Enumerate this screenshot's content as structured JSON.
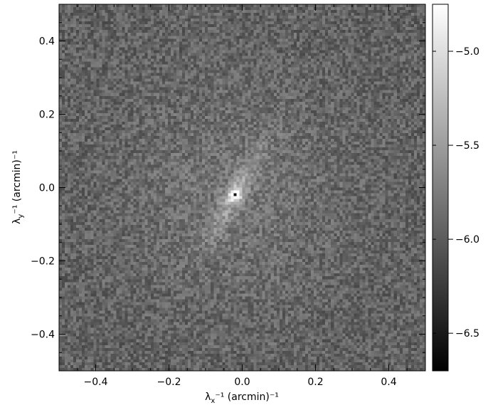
{
  "chart_data": {
    "type": "heatmap",
    "title": "",
    "xlabel_base": "λ",
    "xlabel_sub": "x",
    "xlabel_rest": "⁻¹ (arcmin)⁻¹",
    "ylabel_base": "λ",
    "ylabel_sub": "y",
    "ylabel_rest": "⁻¹ (arcmin)⁻¹",
    "xlim": [
      -0.5,
      0.5
    ],
    "ylim": [
      -0.5,
      0.5
    ],
    "xticks": [
      -0.4,
      -0.2,
      0.0,
      0.2,
      0.4
    ],
    "yticks": [
      -0.4,
      -0.2,
      0.0,
      0.2,
      0.4
    ],
    "xtick_labels": [
      "−0.4",
      "−0.2",
      "0.0",
      "0.2",
      "0.4"
    ],
    "ytick_labels": [
      "−0.4",
      "−0.2",
      "0.0",
      "0.2",
      "0.4"
    ],
    "grid": false,
    "colormap": "grayscale",
    "colorbar": {
      "range": [
        -6.7,
        -4.75
      ],
      "ticks": [
        -5.0,
        -5.5,
        -6.0,
        -6.5
      ],
      "tick_labels": [
        "−5.0",
        "−5.5",
        "−6.0",
        "−6.5"
      ]
    },
    "field": {
      "background_mean": -5.95,
      "noise_amplitude": 0.22,
      "features": [
        {
          "name": "central peak",
          "x": -0.02,
          "y": -0.02,
          "value": -4.8
        },
        {
          "name": "elongated ridge",
          "x": -0.02,
          "y": -0.02,
          "orientation_deg": 60,
          "value": -5.55
        },
        {
          "name": "diffuse arc",
          "x": -0.05,
          "y": -0.1,
          "value": -5.8
        }
      ]
    },
    "colors": {
      "min": "#000000",
      "max": "#ffffff"
    }
  }
}
